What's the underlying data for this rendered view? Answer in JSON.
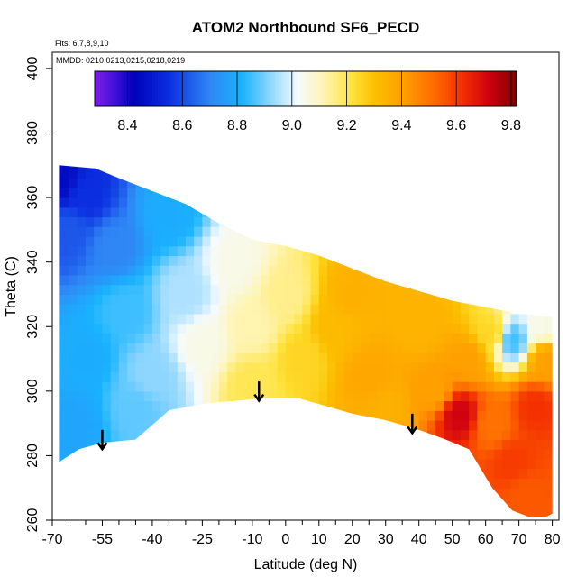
{
  "chart_data": {
    "type": "heatmap",
    "title": "ATOM2 Northbound SF6_PECD",
    "annotations": {
      "flights": "Flts: 6,7,8,9,10",
      "dates": "MMDD: 0210,0213,0215,0218,0219"
    },
    "xlabel": "Latitude (deg N)",
    "ylabel": "Theta (C)",
    "xlim": [
      -70,
      82
    ],
    "ylim": [
      260,
      405
    ],
    "x_ticks": [
      -70,
      -55,
      -40,
      -25,
      -10,
      0,
      10,
      20,
      30,
      40,
      50,
      60,
      70,
      80
    ],
    "x_minor_ticks": [
      -65,
      -60,
      -50,
      -45,
      -35,
      -30,
      -20,
      -15,
      -5,
      5,
      15,
      25,
      35,
      45,
      55,
      65,
      75
    ],
    "y_ticks": [
      260,
      280,
      300,
      320,
      340,
      360,
      380,
      400
    ],
    "colorbar": {
      "min": 8.28,
      "max": 9.82,
      "ticks": [
        8.4,
        8.6,
        8.8,
        9.0,
        9.2,
        9.4,
        9.6,
        9.8
      ],
      "stops": [
        {
          "v": 8.28,
          "c": "#7f1fe8"
        },
        {
          "v": 8.36,
          "c": "#3a10d8"
        },
        {
          "v": 8.42,
          "c": "#0000b8"
        },
        {
          "v": 8.55,
          "c": "#0b2ee0"
        },
        {
          "v": 8.7,
          "c": "#2f86f5"
        },
        {
          "v": 8.82,
          "c": "#19b4ff"
        },
        {
          "v": 8.92,
          "c": "#8fd6ff"
        },
        {
          "v": 9.02,
          "c": "#f5fbff"
        },
        {
          "v": 9.12,
          "c": "#fff4b0"
        },
        {
          "v": 9.22,
          "c": "#ffe23a"
        },
        {
          "v": 9.3,
          "c": "#fcc000"
        },
        {
          "v": 9.42,
          "c": "#ff9a00"
        },
        {
          "v": 9.52,
          "c": "#ff6a00"
        },
        {
          "v": 9.62,
          "c": "#f43000"
        },
        {
          "v": 9.72,
          "c": "#d00010"
        },
        {
          "v": 9.82,
          "c": "#7a0000"
        }
      ]
    },
    "arrows": [
      {
        "lat": -55,
        "theta": 288
      },
      {
        "lat": -8,
        "theta": 303
      },
      {
        "lat": 38,
        "theta": 293
      }
    ],
    "field": {
      "top_boundary": [
        [
          -68,
          370
        ],
        [
          -57,
          369
        ],
        [
          -50,
          366
        ],
        [
          -40,
          362
        ],
        [
          -30,
          358
        ],
        [
          -20,
          352
        ],
        [
          -10,
          347
        ],
        [
          0,
          345
        ],
        [
          10,
          342
        ],
        [
          20,
          338
        ],
        [
          30,
          334
        ],
        [
          40,
          331
        ],
        [
          50,
          328
        ],
        [
          60,
          326
        ],
        [
          70,
          324
        ],
        [
          80,
          323
        ]
      ],
      "bottom_boundary": [
        [
          -68,
          278
        ],
        [
          -62,
          282
        ],
        [
          -55,
          284
        ],
        [
          -45,
          285
        ],
        [
          -35,
          294
        ],
        [
          -25,
          296
        ],
        [
          -15,
          297
        ],
        [
          -5,
          298
        ],
        [
          3,
          298
        ],
        [
          10,
          296
        ],
        [
          20,
          293
        ],
        [
          30,
          291
        ],
        [
          40,
          288
        ],
        [
          48,
          285
        ],
        [
          55,
          282
        ],
        [
          62,
          270
        ],
        [
          68,
          263
        ],
        [
          73,
          261
        ],
        [
          78,
          261
        ],
        [
          80,
          262
        ]
      ],
      "anchors": [
        {
          "lat": -68,
          "theta": 365,
          "v": 8.45
        },
        {
          "lat": -65,
          "theta": 350,
          "v": 8.62
        },
        {
          "lat": -60,
          "theta": 360,
          "v": 8.55
        },
        {
          "lat": -52,
          "theta": 345,
          "v": 8.7
        },
        {
          "lat": -48,
          "theta": 325,
          "v": 8.85
        },
        {
          "lat": -60,
          "theta": 310,
          "v": 8.8
        },
        {
          "lat": -63,
          "theta": 290,
          "v": 8.78
        },
        {
          "lat": -45,
          "theta": 295,
          "v": 8.88
        },
        {
          "lat": -40,
          "theta": 305,
          "v": 8.92
        },
        {
          "lat": -35,
          "theta": 355,
          "v": 8.8
        },
        {
          "lat": -30,
          "theta": 330,
          "v": 8.95
        },
        {
          "lat": -25,
          "theta": 315,
          "v": 9.05
        },
        {
          "lat": -15,
          "theta": 340,
          "v": 9.05
        },
        {
          "lat": -10,
          "theta": 320,
          "v": 9.12
        },
        {
          "lat": -10,
          "theta": 302,
          "v": 9.2
        },
        {
          "lat": 0,
          "theta": 330,
          "v": 9.15
        },
        {
          "lat": 5,
          "theta": 310,
          "v": 9.25
        },
        {
          "lat": 15,
          "theta": 320,
          "v": 9.32
        },
        {
          "lat": 20,
          "theta": 330,
          "v": 9.35
        },
        {
          "lat": 25,
          "theta": 305,
          "v": 9.38
        },
        {
          "lat": 30,
          "theta": 295,
          "v": 9.35
        },
        {
          "lat": 40,
          "theta": 320,
          "v": 9.34
        },
        {
          "lat": 45,
          "theta": 300,
          "v": 9.4
        },
        {
          "lat": 52,
          "theta": 293,
          "v": 9.72
        },
        {
          "lat": 55,
          "theta": 310,
          "v": 9.4
        },
        {
          "lat": 62,
          "theta": 318,
          "v": 9.25
        },
        {
          "lat": 68,
          "theta": 316,
          "v": 8.85
        },
        {
          "lat": 62,
          "theta": 290,
          "v": 9.5
        },
        {
          "lat": 68,
          "theta": 278,
          "v": 9.6
        },
        {
          "lat": 75,
          "theta": 295,
          "v": 9.62
        },
        {
          "lat": 78,
          "theta": 310,
          "v": 9.4
        },
        {
          "lat": 77,
          "theta": 320,
          "v": 9.05
        },
        {
          "lat": 72,
          "theta": 268,
          "v": 9.55
        }
      ]
    }
  }
}
